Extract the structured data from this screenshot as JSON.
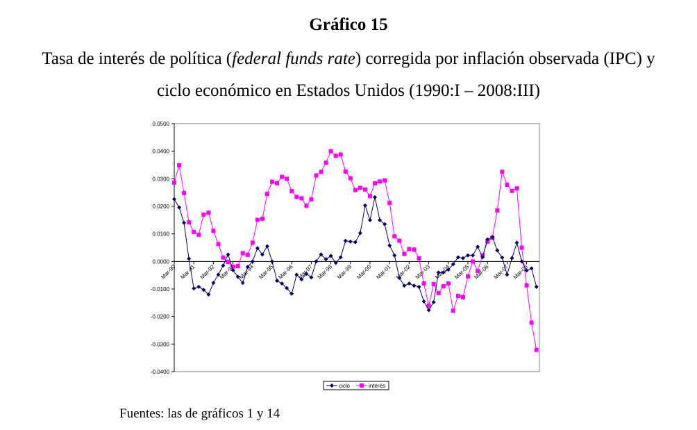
{
  "header": {
    "title": "Gráfico 15",
    "subtitle_part1": "Tasa de interés de política (",
    "subtitle_italic": "federal funds rate",
    "subtitle_part2": ") corregida por inflación observada (IPC) y",
    "subtitle_line2": "ciclo económico en Estados Unidos (1990:I – 2008:III)"
  },
  "footer": {
    "source": "Fuentes: las de gráficos 1 y  14"
  },
  "chart_data": {
    "type": "line",
    "title": "Gráfico 15",
    "xlabel": "",
    "ylabel": "",
    "ylim": [
      -0.04,
      0.05
    ],
    "yticks": [
      "0.0500",
      "0.0400",
      "0.0300",
      "0.0200",
      "0.0100",
      "0.0000",
      "-0.0100",
      "-0.0200",
      "-0.0300",
      "-0.0400"
    ],
    "ytick_values": [
      0.05,
      0.04,
      0.03,
      0.02,
      0.01,
      0.0,
      -0.01,
      -0.02,
      -0.03,
      -0.04
    ],
    "xticks": [
      "Mar-90",
      "Mar-91",
      "Mar-92",
      "Mar-93",
      "Mar-94",
      "Mar-95",
      "Mar-96",
      "Mar-97",
      "Mar-98",
      "Mar-99",
      "Mar-00",
      "Mar-01",
      "Mar-02",
      "Mar-03",
      "Mar-04",
      "Mar-05",
      "Mar-06",
      "Mar-07",
      "Mar-08"
    ],
    "x_period": "quarterly 1990:I – 2008:III",
    "grid": false,
    "legend_position": "bottom-center",
    "series": [
      {
        "name": "ciclo",
        "color": "#000066",
        "marker": "diamond",
        "values": [
          0.0226,
          0.0196,
          0.014,
          0.001,
          -0.0098,
          -0.0092,
          -0.0103,
          -0.012,
          -0.0078,
          -0.0048,
          -0.0015,
          0.0025,
          -0.0032,
          -0.0056,
          -0.0078,
          -0.002,
          0.0,
          0.0048,
          0.0025,
          0.0055,
          0.0,
          -0.007,
          -0.008,
          -0.0097,
          -0.0117,
          -0.0048,
          -0.0065,
          -0.0045,
          -0.0058,
          0.0,
          0.0025,
          0.0008,
          0.002,
          -0.0005,
          0.0015,
          0.0075,
          0.0072,
          0.007,
          0.0103,
          0.0203,
          0.015,
          0.0233,
          0.015,
          0.0135,
          0.0058,
          0.0022,
          -0.006,
          -0.0088,
          -0.008,
          -0.0088,
          -0.0092,
          -0.0145,
          -0.0177,
          -0.0148,
          -0.004,
          -0.004,
          -0.003,
          -0.001,
          0.0015,
          0.0012,
          0.0022,
          0.0022,
          0.0053,
          0.0015,
          0.008,
          0.0088,
          0.004,
          0.0014,
          -0.0048,
          0.0012,
          0.0068,
          0.0,
          -0.0033,
          -0.0025,
          -0.0092
        ]
      },
      {
        "name": "interés",
        "color": "#FF00FF",
        "marker": "square",
        "values": [
          0.0286,
          0.0349,
          0.0248,
          0.0142,
          0.0107,
          0.0097,
          0.017,
          0.0177,
          0.0111,
          0.0063,
          0.0014,
          -0.0002,
          -0.0019,
          -0.0017,
          0.003,
          0.0024,
          0.0068,
          0.0151,
          0.0155,
          0.0245,
          0.0289,
          0.0284,
          0.0307,
          0.03,
          0.0255,
          0.0234,
          0.0229,
          0.0202,
          0.0225,
          0.0312,
          0.0325,
          0.0358,
          0.04,
          0.0383,
          0.0388,
          0.0326,
          0.0302,
          0.0259,
          0.0267,
          0.0261,
          0.0237,
          0.0284,
          0.029,
          0.0294,
          0.0212,
          0.0091,
          0.0075,
          0.0027,
          0.0045,
          0.0043,
          0.0011,
          -0.008,
          -0.0161,
          -0.0082,
          -0.0115,
          -0.009,
          -0.008,
          -0.0179,
          -0.0125,
          -0.013,
          -0.0054,
          0.0,
          -0.0035,
          0.0022,
          0.0072,
          0.0086,
          0.0185,
          0.0325,
          0.0278,
          0.0256,
          0.0265,
          0.005,
          -0.0087,
          -0.0222,
          -0.0321
        ]
      }
    ]
  }
}
